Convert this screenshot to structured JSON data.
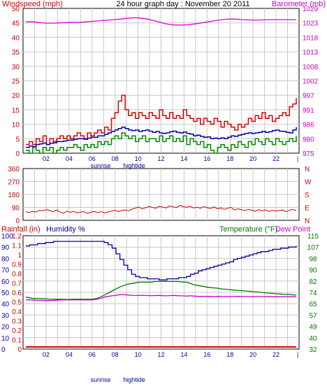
{
  "colors": {
    "wind": "#dd0000",
    "gust_avg": "#0000aa",
    "wind_avg": "#008800",
    "barometer": "#dd00dd",
    "direction": "#cc0000",
    "rain": "#dd0000",
    "humidity": "#000099",
    "temperature": "#007700",
    "dewpoint": "#cc00cc",
    "grid": "#c8c8c8",
    "axis_red": "#cc0000",
    "axis_magenta": "#cc00cc",
    "axis_blue": "#000099",
    "axis_green": "#007700"
  },
  "chart_data": [
    {
      "type": "line",
      "title": "24 hour graph day : November 20 2011",
      "ylabel_left": "Windspeed (mph)",
      "ylabel_right": "Barometer (mb)",
      "left_ticks": [
        "50",
        "45",
        "40",
        "35",
        "30",
        "25",
        "20",
        "15",
        "10",
        "5",
        "0"
      ],
      "right_ticks": [
        "1029",
        "1023",
        "1018",
        "1013",
        "1008",
        "1002",
        "997",
        "991",
        "986",
        "980",
        "975"
      ],
      "x_ticks": [
        "02",
        "04",
        "06",
        "08",
        "10",
        "12",
        "14",
        "16",
        "18",
        "20",
        "22"
      ],
      "annotations": [
        "sunrise",
        "hightide"
      ],
      "ylim_left": [
        0,
        50
      ],
      "ylim_right": [
        975,
        1029
      ],
      "series": [
        {
          "key": "gust",
          "values": [
            3,
            4,
            3,
            5,
            4,
            6,
            3,
            5,
            4,
            5,
            6,
            5,
            6,
            5,
            6,
            7,
            6,
            5,
            7,
            6,
            7,
            8,
            7,
            9,
            8,
            12,
            14,
            18,
            20,
            15,
            13,
            14,
            12,
            14,
            13,
            12,
            14,
            13,
            12,
            15,
            13,
            12,
            14,
            12,
            13,
            12,
            15,
            13,
            12,
            11,
            12,
            10,
            12,
            11,
            10,
            12,
            11,
            9,
            11,
            10,
            9,
            8,
            10,
            9,
            10,
            12,
            11,
            13,
            12,
            14,
            12,
            13,
            11,
            12,
            13,
            14,
            13,
            16,
            17,
            19
          ]
        },
        {
          "key": "average",
          "values": [
            2,
            2.5,
            2.2,
            3,
            3.2,
            3.5,
            3,
            3.4,
            3.6,
            4,
            4,
            4.2,
            4.5,
            4.5,
            4.8,
            5,
            5,
            4.8,
            5.2,
            5.5,
            5.5,
            6,
            6,
            6.5,
            7,
            7.5,
            8,
            8.5,
            9,
            8.5,
            8,
            7.8,
            8,
            7.5,
            7.8,
            8,
            7.6,
            7.2,
            7.5,
            7,
            6.8,
            7,
            7.4,
            7.6,
            7.2,
            7,
            7.3,
            6.8,
            6.6,
            6,
            6.2,
            5.8,
            5.5,
            5.6,
            5,
            5.2,
            5,
            5.3,
            5,
            5.5,
            6,
            5.8,
            6.2,
            6.5,
            6.8,
            7,
            6.8,
            7,
            7.2,
            7.5,
            7.2,
            7.4,
            7.8,
            8,
            7.6,
            7.5,
            7.2,
            7,
            8,
            9
          ]
        },
        {
          "key": "speed",
          "values": [
            1,
            0,
            2,
            1,
            0,
            2,
            1,
            2,
            0,
            1,
            2,
            1,
            2,
            2,
            3,
            2,
            1,
            3,
            2,
            3,
            2,
            4,
            3,
            4,
            3,
            5,
            6,
            5,
            7,
            6,
            5,
            6,
            4,
            5,
            6,
            4,
            5,
            5,
            4,
            6,
            4,
            5,
            6,
            4,
            5,
            4,
            6,
            3,
            5,
            4,
            3,
            4,
            2,
            3,
            1,
            0,
            2,
            3,
            2,
            1,
            3,
            2,
            4,
            3,
            2,
            4,
            3,
            5,
            4,
            3,
            5,
            4,
            3,
            5,
            4,
            3,
            4,
            5,
            4,
            6
          ]
        },
        {
          "key": "barometer",
          "values": [
            1024,
            1024,
            1023.7,
            1023.5,
            1023.5,
            1023.6,
            1023.7,
            1023.8,
            1023.8,
            1024,
            1024.2,
            1024.4,
            1024.6,
            1024.8,
            1025,
            1025.3,
            1025.5,
            1025.4,
            1025,
            1024.4,
            1023.7,
            1023.1,
            1022.8,
            1022.8,
            1022.9,
            1023.2,
            1023.6,
            1024,
            1024.4,
            1024.8,
            1025,
            1025,
            1024.8,
            1024.7,
            1024.6,
            1024.7,
            1024.8,
            1024.8,
            1024.8,
            1024.8,
            1024.8
          ]
        }
      ]
    },
    {
      "type": "scatter",
      "ylabel_left_ticks": [
        "360",
        "270",
        "180",
        "90",
        "0"
      ],
      "right_labels": [
        "N",
        "W",
        "S",
        "E",
        "N"
      ],
      "ylim": [
        0,
        360
      ],
      "series": [
        {
          "key": "direction",
          "values": [
            60,
            55,
            62,
            58,
            70,
            66,
            75,
            68,
            60,
            72,
            58,
            50,
            64,
            56,
            62,
            52,
            58,
            60,
            48,
            56,
            62,
            54,
            60,
            52,
            58,
            64,
            70,
            62,
            68,
            72,
            66,
            78,
            85,
            92,
            80,
            88,
            96,
            90,
            84,
            98,
            92,
            86,
            100,
            94,
            88,
            104,
            96,
            90,
            98,
            86,
            92,
            84,
            96,
            88,
            82,
            94,
            80,
            86,
            76,
            84,
            90,
            72,
            80,
            74,
            68,
            76,
            70,
            64,
            74,
            66,
            72,
            62,
            70,
            64,
            68,
            72,
            60,
            70,
            76,
            66
          ]
        }
      ]
    },
    {
      "type": "line",
      "ylabel_left": "Rainfall (in)",
      "ylabel_humidity": "Humidity %",
      "ylabel_right": "Temperature (°F)",
      "ylabel_right_dew": "Dew Point",
      "rain_ticks": [
        "1.2",
        "1.1",
        "1",
        "0.9",
        "0.8",
        "0.7",
        "0.6",
        "0.5",
        "0.4",
        "0.3",
        "0.2",
        "0.1",
        "0"
      ],
      "humidity_ticks": [
        "100",
        "90",
        "80",
        "70",
        "60",
        "50",
        "40",
        "30",
        "20",
        "10",
        "0"
      ],
      "temp_ticks": [
        "115",
        "107",
        "98",
        "90",
        "82",
        "74",
        "65",
        "57",
        "49",
        "40",
        "32"
      ],
      "x_ticks": [
        "02",
        "04",
        "06",
        "08",
        "10",
        "12",
        "14",
        "16",
        "18",
        "20",
        "22"
      ],
      "annotations": [
        "sunrise",
        "hightide"
      ],
      "ylim_humidity": [
        0,
        100
      ],
      "ylim_temp": [
        32,
        115
      ],
      "series": [
        {
          "key": "humidity",
          "values": [
            91,
            92,
            92,
            93,
            93,
            94,
            94,
            95,
            95,
            95,
            95,
            95,
            95,
            95,
            95,
            95,
            95,
            95,
            95,
            95,
            94,
            92,
            89,
            84,
            79,
            74,
            70,
            66,
            64,
            63,
            63,
            62,
            62,
            62,
            61,
            61,
            62,
            62,
            62,
            63,
            63,
            64,
            66,
            67,
            69,
            70,
            71,
            72,
            73,
            74,
            75,
            76,
            77,
            79,
            80,
            81,
            82,
            83,
            84,
            85,
            86,
            86,
            87,
            88,
            88,
            89,
            89,
            90,
            90,
            91
          ]
        },
        {
          "key": "temperature",
          "values": [
            70,
            69.5,
            69,
            69,
            68.8,
            68.8,
            68.6,
            68.5,
            68.5,
            68.5,
            68.4,
            68.4,
            68.5,
            68.5,
            68.5,
            68.5,
            68.5,
            68.6,
            69,
            70,
            71.5,
            73,
            74.5,
            76,
            77.5,
            78.5,
            79.5,
            80,
            80.5,
            81,
            81,
            81,
            81,
            81.5,
            81.5,
            81.5,
            81.5,
            81.5,
            81.5,
            81.5,
            81,
            81,
            80,
            79,
            78.5,
            78,
            77.5,
            77,
            76.8,
            76.5,
            76,
            75.8,
            75.5,
            75.2,
            75,
            74.8,
            74.5,
            74.3,
            74,
            73.8,
            73.5,
            73.2,
            73,
            72.8,
            72.5,
            72.3,
            72,
            72,
            71.8,
            71.5
          ]
        },
        {
          "key": "dewpoint",
          "values": [
            68,
            68,
            67.8,
            67.6,
            67.6,
            67.5,
            67.5,
            67.6,
            67.8,
            68,
            68,
            68,
            68,
            68,
            68,
            68,
            68,
            68,
            68.5,
            69,
            70,
            70.6,
            71,
            71.4,
            71.8,
            71.8,
            71.6,
            71.4,
            71.2,
            71.3,
            71.4,
            71.2,
            71.1,
            71.2,
            71.3,
            71.1,
            71,
            71.2,
            71.3,
            71,
            71,
            70.8,
            71,
            70.8,
            70.6,
            70.6,
            70.5,
            70.6,
            70.5,
            70.6,
            70.5,
            70.4,
            70.4,
            70.5,
            70.6,
            70.5,
            70.5,
            70.4,
            70.3,
            70.4,
            70.4,
            70.3,
            70.3,
            70.3,
            70.3,
            70.3,
            70.3,
            70.3,
            70.3,
            70.3
          ]
        },
        {
          "key": "rain",
          "values": [
            0,
            0,
            0,
            0,
            0,
            0,
            0,
            0,
            0,
            0,
            0,
            0,
            0,
            0,
            0,
            0,
            0,
            0,
            0,
            0,
            0,
            0,
            0,
            0,
            0,
            0,
            0,
            0,
            0,
            0
          ]
        }
      ]
    }
  ]
}
